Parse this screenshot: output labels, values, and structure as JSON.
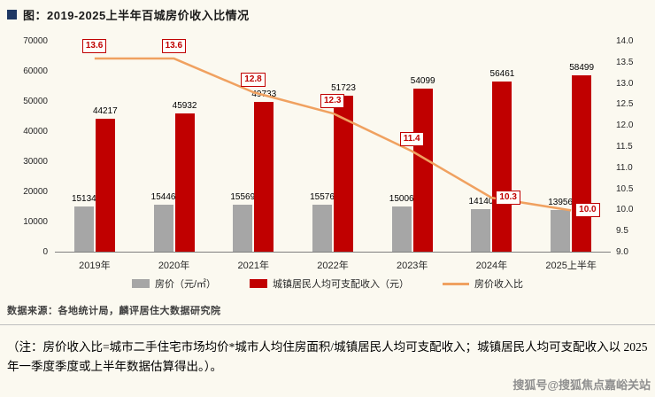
{
  "page": {
    "title": "图：2019-2025上半年百城房价收入比情况",
    "source": "数据来源：各地统计局，麟评居住大数据研究院",
    "note": "（注：房价收入比=城市二手住宅市场均价*城市人均住房面积/城镇居民人均可支配收入；城镇居民人均可支配收入以 2025 年一季度季度或上半年数据估算得出。）。",
    "watermark": "搜狐号@搜狐焦点嘉峪关站"
  },
  "colors": {
    "bar_gray": "#a6a6a6",
    "bar_red": "#c00000",
    "line_orange": "#f0a160",
    "title_square": "#1f3864",
    "background": "#fbf9f0"
  },
  "chart_data": {
    "type": "bar+line",
    "title": "2019-2025上半年百城房价收入比情况",
    "categories": [
      "2019年",
      "2020年",
      "2021年",
      "2022年",
      "2023年",
      "2024年",
      "2025上半年"
    ],
    "series": [
      {
        "name": "房价（元/㎡）",
        "type": "bar",
        "axis": "left",
        "color_key": "bar_gray",
        "values": [
          15134,
          15446,
          15569,
          15576,
          15006,
          14140,
          13956
        ]
      },
      {
        "name": "城镇居民人均可支配收入（元）",
        "type": "bar",
        "axis": "left",
        "color_key": "bar_red",
        "values": [
          44217,
          45932,
          49733,
          51723,
          54099,
          56461,
          58499
        ]
      },
      {
        "name": "房价收入比",
        "type": "line",
        "axis": "right",
        "color_key": "line_orange",
        "values": [
          13.6,
          13.6,
          12.8,
          12.3,
          11.4,
          10.3,
          10.0
        ]
      }
    ],
    "left_axis": {
      "min": 0,
      "max": 70000,
      "step": 10000,
      "ticks": [
        "0",
        "10000",
        "20000",
        "30000",
        "40000",
        "50000",
        "60000",
        "70000"
      ]
    },
    "right_axis": {
      "min": 9.0,
      "max": 14.0,
      "step": 0.5,
      "ticks": [
        "9.0",
        "9.5",
        "10.0",
        "10.5",
        "11.0",
        "11.5",
        "12.0",
        "12.5",
        "13.0",
        "13.5",
        "14.0"
      ]
    },
    "grid": false,
    "legend_position": "bottom",
    "legend": [
      "房价（元/㎡）",
      "城镇居民人均可支配收入（元）",
      "房价收入比"
    ]
  }
}
